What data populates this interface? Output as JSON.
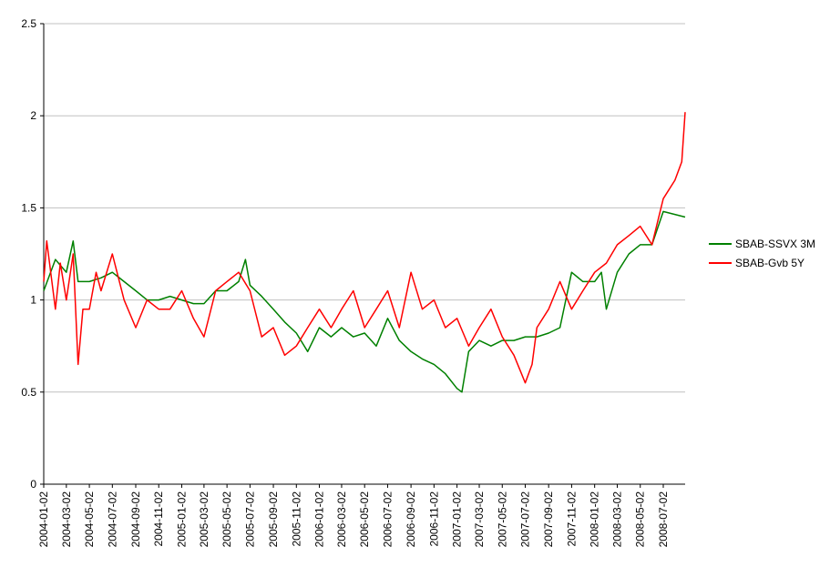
{
  "chart_data": {
    "type": "line",
    "title": "",
    "xlabel": "",
    "ylabel": "",
    "ylim": [
      0,
      2.5
    ],
    "y_ticks": [
      "0",
      "0.5",
      "1",
      "1.5",
      "2",
      "2.5"
    ],
    "x_ticks": [
      "2004-01-02",
      "2004-03-02",
      "2004-05-02",
      "2004-07-02",
      "2004-09-02",
      "2004-11-02",
      "2005-01-02",
      "2005-03-02",
      "2005-05-02",
      "2005-07-02",
      "2005-09-02",
      "2005-11-02",
      "2006-01-02",
      "2006-03-02",
      "2006-05-02",
      "2006-07-02",
      "2006-09-02",
      "2006-11-02",
      "2007-01-02",
      "2007-03-02",
      "2007-05-02",
      "2007-07-02",
      "2007-09-02",
      "2007-11-02",
      "2008-01-02",
      "2008-03-02",
      "2008-05-02",
      "2008-07-02"
    ],
    "x_range": [
      "2004-01-02",
      "2008-08-29"
    ],
    "grid": "horizontal",
    "legend_position": "right",
    "series": [
      {
        "name": "SBAB-SSVX 3M",
        "color": "#008000",
        "x": [
          "2004-01-02",
          "2004-02-02",
          "2004-03-02",
          "2004-03-20",
          "2004-04-02",
          "2004-05-02",
          "2004-06-02",
          "2004-07-02",
          "2004-08-02",
          "2004-09-02",
          "2004-10-02",
          "2004-11-02",
          "2004-12-02",
          "2005-01-02",
          "2005-02-02",
          "2005-03-02",
          "2005-04-02",
          "2005-05-02",
          "2005-06-02",
          "2005-06-20",
          "2005-07-02",
          "2005-08-02",
          "2005-09-02",
          "2005-10-02",
          "2005-11-02",
          "2005-12-02",
          "2006-01-02",
          "2006-02-02",
          "2006-03-02",
          "2006-04-02",
          "2006-05-02",
          "2006-06-02",
          "2006-07-02",
          "2006-08-02",
          "2006-09-02",
          "2006-10-02",
          "2006-11-02",
          "2006-12-02",
          "2007-01-02",
          "2007-01-15",
          "2007-02-02",
          "2007-03-02",
          "2007-04-02",
          "2007-05-02",
          "2007-06-02",
          "2007-07-02",
          "2007-08-02",
          "2007-09-02",
          "2007-10-02",
          "2007-11-02",
          "2007-12-02",
          "2008-01-02",
          "2008-01-20",
          "2008-02-02",
          "2008-03-02",
          "2008-04-02",
          "2008-05-02",
          "2008-06-02",
          "2008-07-02",
          "2008-08-29"
        ],
        "y": [
          1.05,
          1.22,
          1.15,
          1.32,
          1.1,
          1.1,
          1.12,
          1.15,
          1.1,
          1.05,
          1.0,
          1.0,
          1.02,
          1.0,
          0.98,
          0.98,
          1.05,
          1.05,
          1.1,
          1.22,
          1.08,
          1.02,
          0.95,
          0.88,
          0.82,
          0.72,
          0.85,
          0.8,
          0.85,
          0.8,
          0.82,
          0.75,
          0.9,
          0.78,
          0.72,
          0.68,
          0.65,
          0.6,
          0.52,
          0.5,
          0.72,
          0.78,
          0.75,
          0.78,
          0.78,
          0.8,
          0.8,
          0.82,
          0.85,
          1.15,
          1.1,
          1.1,
          1.15,
          0.95,
          1.15,
          1.25,
          1.3,
          1.3,
          1.48,
          1.45
        ]
      },
      {
        "name": "SBAB-Gvb 5Y",
        "color": "#ff0000",
        "x": [
          "2004-01-02",
          "2004-01-10",
          "2004-02-02",
          "2004-02-15",
          "2004-03-02",
          "2004-03-20",
          "2004-04-02",
          "2004-04-15",
          "2004-05-02",
          "2004-05-20",
          "2004-06-02",
          "2004-07-02",
          "2004-08-02",
          "2004-09-02",
          "2004-10-02",
          "2004-11-02",
          "2004-12-02",
          "2005-01-02",
          "2005-02-02",
          "2005-03-02",
          "2005-04-02",
          "2005-05-02",
          "2005-06-02",
          "2005-07-02",
          "2005-08-02",
          "2005-09-02",
          "2005-10-02",
          "2005-11-02",
          "2005-12-02",
          "2006-01-02",
          "2006-02-02",
          "2006-03-02",
          "2006-04-02",
          "2006-05-02",
          "2006-06-02",
          "2006-07-02",
          "2006-08-02",
          "2006-09-02",
          "2006-10-02",
          "2006-11-02",
          "2006-12-02",
          "2007-01-02",
          "2007-02-02",
          "2007-03-02",
          "2007-04-02",
          "2007-05-02",
          "2007-06-02",
          "2007-07-02",
          "2007-07-20",
          "2007-08-02",
          "2007-09-02",
          "2007-10-02",
          "2007-11-02",
          "2007-12-02",
          "2008-01-02",
          "2008-02-02",
          "2008-03-02",
          "2008-04-02",
          "2008-05-02",
          "2008-06-02",
          "2008-07-02",
          "2008-08-02",
          "2008-08-20",
          "2008-08-29"
        ],
        "y": [
          1.1,
          1.32,
          0.95,
          1.2,
          1.0,
          1.25,
          0.65,
          0.95,
          0.95,
          1.15,
          1.05,
          1.25,
          1.0,
          0.85,
          1.0,
          0.95,
          0.95,
          1.05,
          0.9,
          0.8,
          1.05,
          1.1,
          1.15,
          1.05,
          0.8,
          0.85,
          0.7,
          0.75,
          0.85,
          0.95,
          0.85,
          0.95,
          1.05,
          0.85,
          0.95,
          1.05,
          0.85,
          1.15,
          0.95,
          1.0,
          0.85,
          0.9,
          0.75,
          0.85,
          0.95,
          0.8,
          0.7,
          0.55,
          0.65,
          0.85,
          0.95,
          1.1,
          0.95,
          1.05,
          1.15,
          1.2,
          1.3,
          1.35,
          1.4,
          1.3,
          1.55,
          1.65,
          1.75,
          2.02
        ]
      }
    ]
  }
}
